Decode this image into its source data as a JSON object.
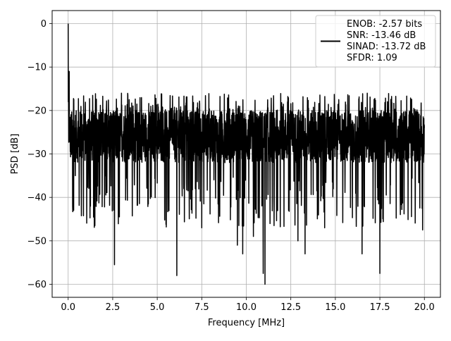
{
  "chart_data": {
    "type": "line",
    "title": "",
    "xlabel": "Frequency [MHz]",
    "ylabel": "PSD [dB]",
    "xlim": [
      -0.9,
      20.9
    ],
    "ylim": [
      -63,
      3
    ],
    "x_ticks": [
      0.0,
      2.5,
      5.0,
      7.5,
      10.0,
      12.5,
      15.0,
      17.5,
      20.0
    ],
    "x_tick_labels": [
      "0.0",
      "2.5",
      "5.0",
      "7.5",
      "10.0",
      "12.5",
      "15.0",
      "17.5",
      "20.0"
    ],
    "y_ticks": [
      0,
      -10,
      -20,
      -30,
      -40,
      -50,
      -60
    ],
    "y_tick_labels": [
      "0",
      "−10",
      "−20",
      "−30",
      "−40",
      "−50",
      "−60"
    ],
    "grid": true,
    "legend_position": "top-right",
    "legend_lines": [
      "ENOB: -2.57 bits",
      "SNR: -13.46 dB",
      "SINAD: -13.72 dB",
      "SFDR: 1.09"
    ],
    "line_color": "#000000",
    "series": [
      {
        "x_range": [
          0,
          20
        ],
        "peak": {
          "x": 0.0,
          "y": 0
        },
        "noise_floor_band": [
          -32,
          -20
        ],
        "deep_dips": [
          {
            "x": 0.4,
            "y": -35
          },
          {
            "x": 1.5,
            "y": -46.5
          },
          {
            "x": 2.6,
            "y": -55.5
          },
          {
            "x": 6.1,
            "y": -58
          },
          {
            "x": 7.5,
            "y": -47
          },
          {
            "x": 9.5,
            "y": -51
          },
          {
            "x": 9.8,
            "y": -53
          },
          {
            "x": 10.4,
            "y": -49
          },
          {
            "x": 10.95,
            "y": -57.5
          },
          {
            "x": 11.05,
            "y": -60
          },
          {
            "x": 12.9,
            "y": -50
          },
          {
            "x": 13.3,
            "y": -53
          },
          {
            "x": 14.4,
            "y": -47
          },
          {
            "x": 16.5,
            "y": -53
          },
          {
            "x": 17.5,
            "y": -57.5
          },
          {
            "x": 19.9,
            "y": -47.5
          }
        ]
      }
    ]
  }
}
